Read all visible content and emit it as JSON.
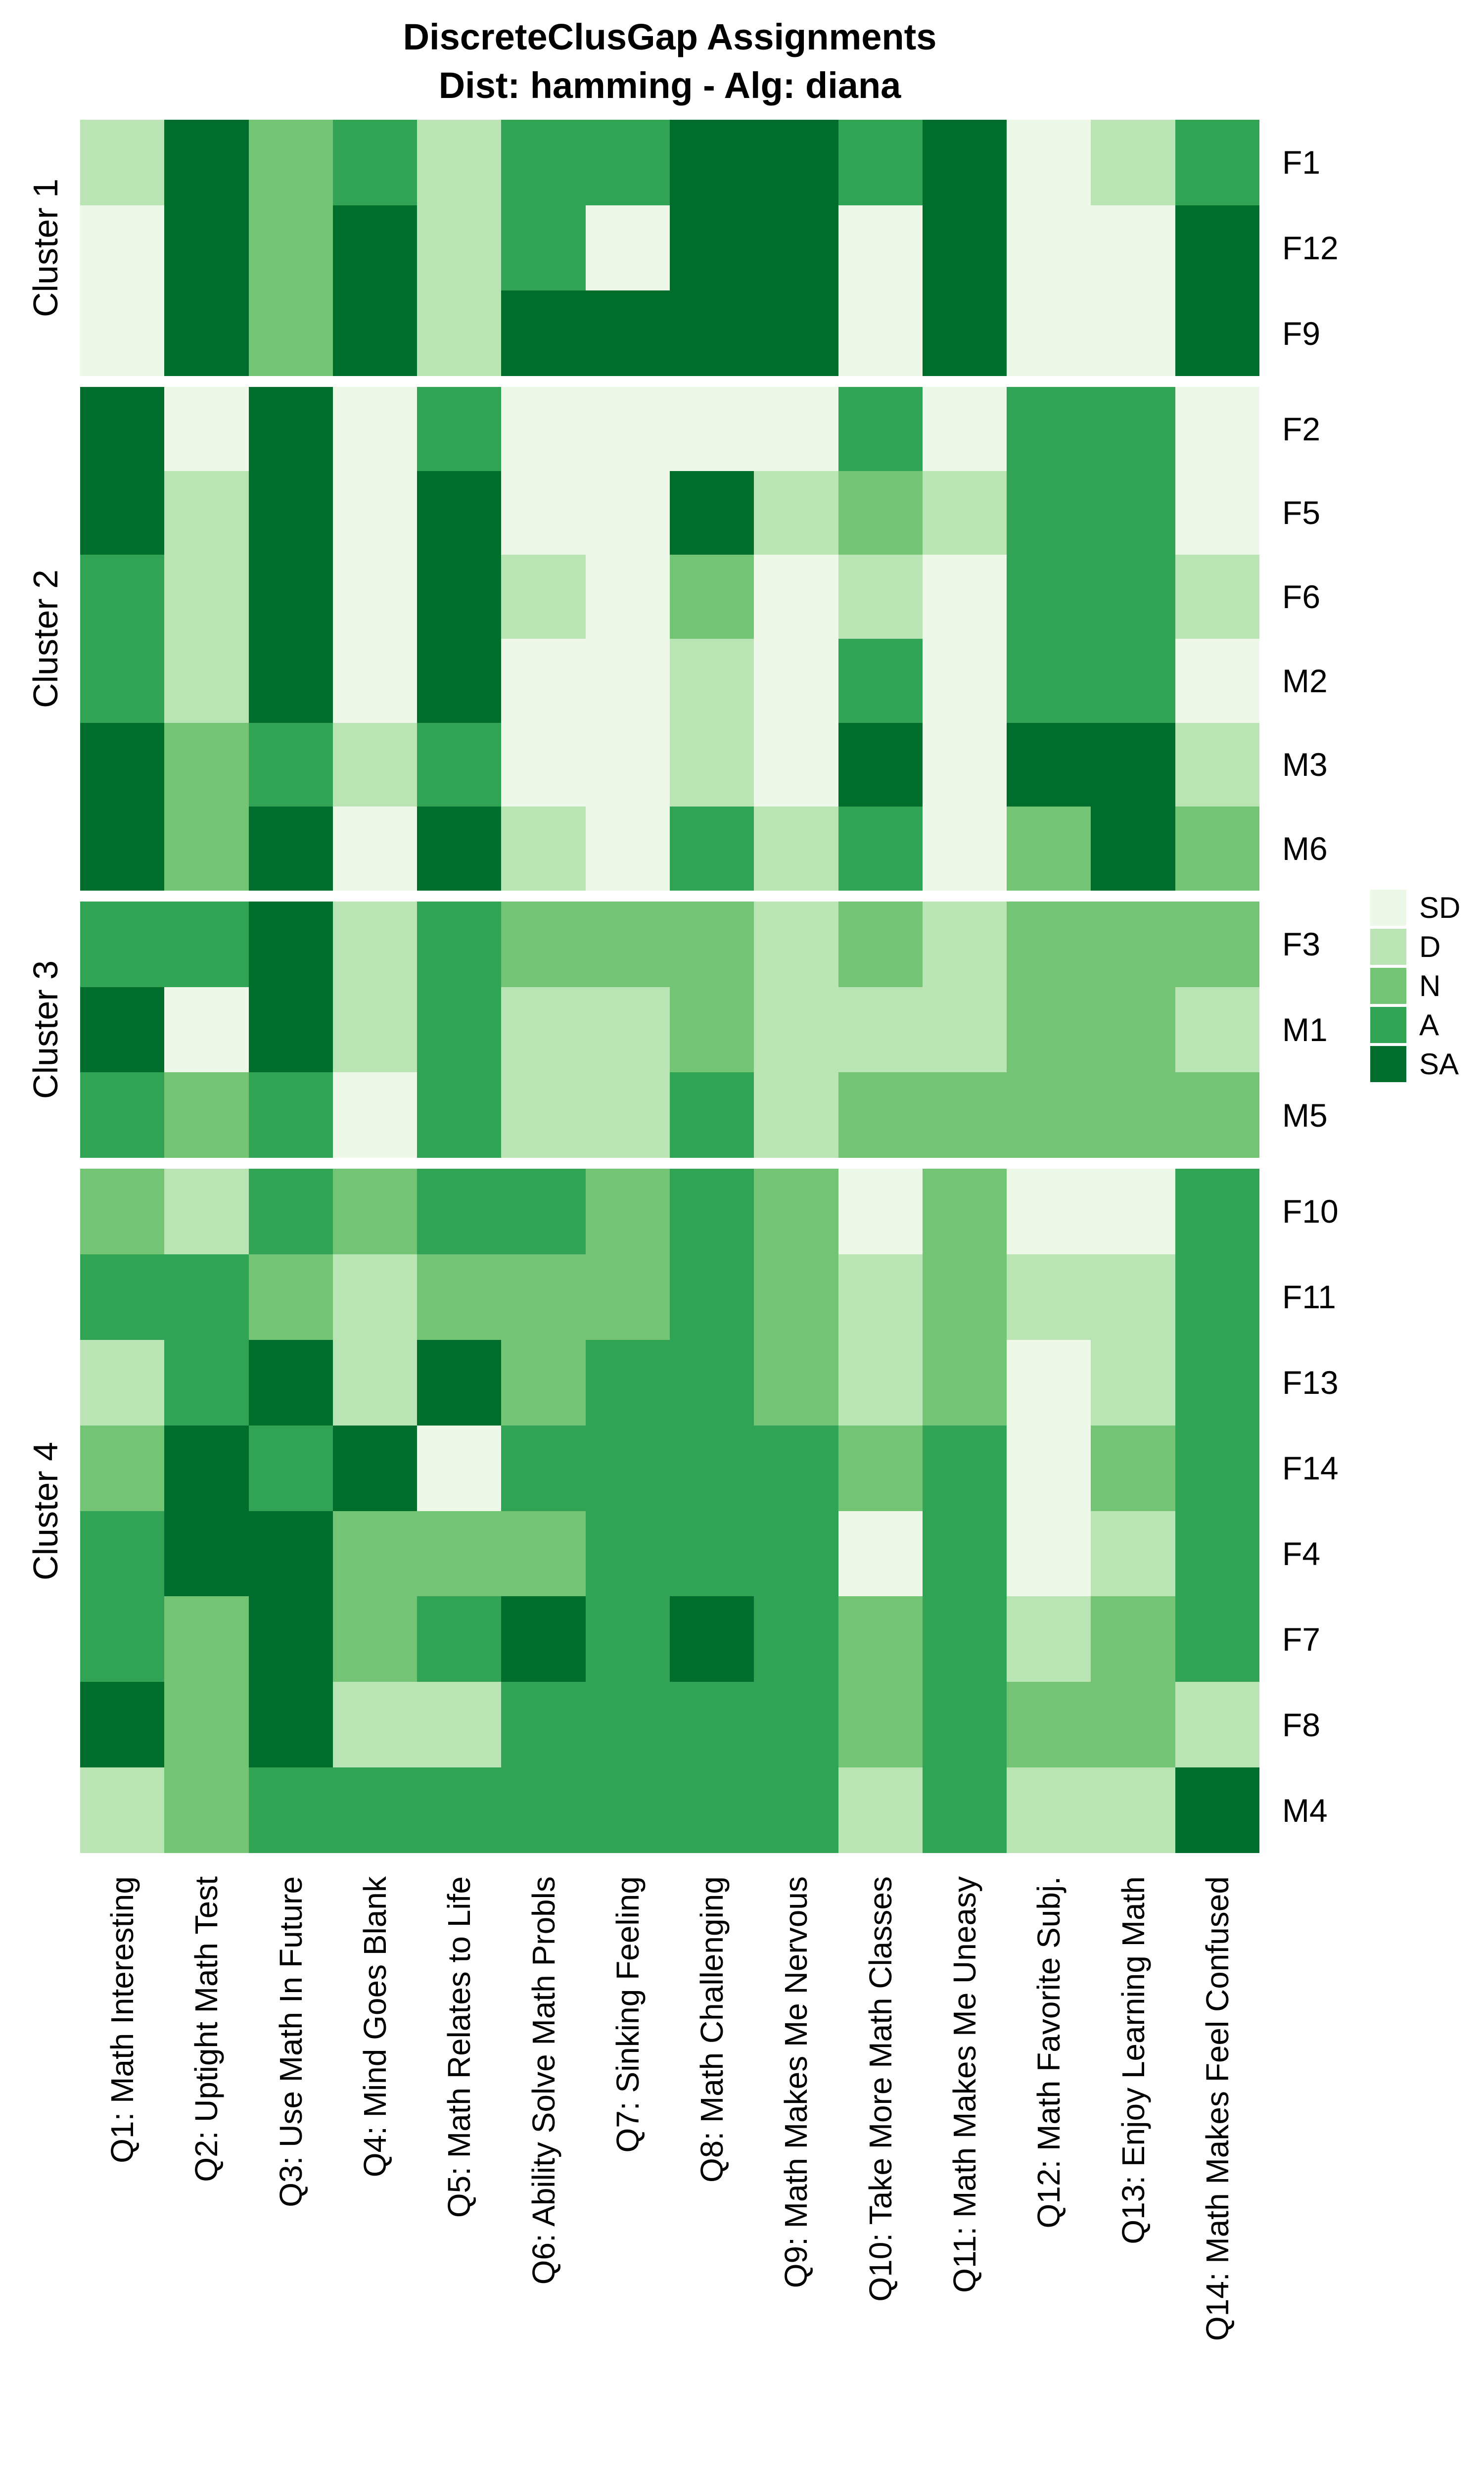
{
  "title": {
    "line1": "DiscreteClusGap Assignments",
    "line2": "Dist: hamming - Alg: diana"
  },
  "legend": {
    "entries": [
      {
        "label": "SD",
        "color": "#EDF8E9"
      },
      {
        "label": "D",
        "color": "#BAE4B3"
      },
      {
        "label": "N",
        "color": "#74C476"
      },
      {
        "label": "A",
        "color": "#31A354"
      },
      {
        "label": "SA",
        "color": "#006D2C"
      }
    ]
  },
  "chart_data": {
    "type": "heatmap",
    "value_levels": [
      "SD",
      "D",
      "N",
      "A",
      "SA"
    ],
    "x_labels": [
      "Q1: Math Interesting",
      "Q2: Uptight Math Test",
      "Q3: Use Math In Future",
      "Q4: Mind Goes Blank",
      "Q5: Math Relates to Life",
      "Q6: Ability Solve Math Probls",
      "Q7: Sinking Feeling",
      "Q8: Math Challenging",
      "Q9: Math Makes Me Nervous",
      "Q10: Take More Math Classes",
      "Q11: Math Makes Me Uneasy",
      "Q12: Math Favorite Subj.",
      "Q13: Enjoy Learning Math",
      "Q14: Math Makes Feel Confused"
    ],
    "clusters": [
      {
        "name": "Cluster 1",
        "rows": [
          {
            "id": "F1",
            "values": [
              "D",
              "SA",
              "N",
              "A",
              "D",
              "A",
              "A",
              "SA",
              "SA",
              "A",
              "SA",
              "SD",
              "D",
              "A"
            ]
          },
          {
            "id": "F12",
            "values": [
              "SD",
              "SA",
              "N",
              "SA",
              "D",
              "A",
              "SD",
              "SA",
              "SA",
              "SD",
              "SA",
              "SD",
              "SD",
              "SA"
            ]
          },
          {
            "id": "F9",
            "values": [
              "SD",
              "SA",
              "N",
              "SA",
              "D",
              "SA",
              "SA",
              "SA",
              "SA",
              "SD",
              "SA",
              "SD",
              "SD",
              "SA"
            ]
          }
        ]
      },
      {
        "name": "Cluster 2",
        "rows": [
          {
            "id": "F2",
            "values": [
              "SA",
              "SD",
              "SA",
              "SD",
              "A",
              "SD",
              "SD",
              "SD",
              "SD",
              "A",
              "SD",
              "A",
              "A",
              "SD"
            ]
          },
          {
            "id": "F5",
            "values": [
              "SA",
              "D",
              "SA",
              "SD",
              "SA",
              "SD",
              "SD",
              "SA",
              "D",
              "N",
              "D",
              "A",
              "A",
              "SD"
            ]
          },
          {
            "id": "F6",
            "values": [
              "A",
              "D",
              "SA",
              "SD",
              "SA",
              "D",
              "SD",
              "N",
              "SD",
              "D",
              "SD",
              "A",
              "A",
              "D"
            ]
          },
          {
            "id": "M2",
            "values": [
              "A",
              "D",
              "SA",
              "SD",
              "SA",
              "SD",
              "SD",
              "D",
              "SD",
              "A",
              "SD",
              "A",
              "A",
              "SD"
            ]
          },
          {
            "id": "M3",
            "values": [
              "SA",
              "N",
              "A",
              "D",
              "A",
              "SD",
              "SD",
              "D",
              "SD",
              "SA",
              "SD",
              "SA",
              "SA",
              "D"
            ]
          },
          {
            "id": "M6",
            "values": [
              "SA",
              "N",
              "SA",
              "SD",
              "SA",
              "D",
              "SD",
              "A",
              "D",
              "A",
              "SD",
              "N",
              "SA",
              "N"
            ]
          }
        ]
      },
      {
        "name": "Cluster 3",
        "rows": [
          {
            "id": "F3",
            "values": [
              "A",
              "A",
              "SA",
              "D",
              "A",
              "N",
              "N",
              "N",
              "D",
              "N",
              "D",
              "N",
              "N",
              "N"
            ]
          },
          {
            "id": "M1",
            "values": [
              "SA",
              "SD",
              "SA",
              "D",
              "A",
              "D",
              "D",
              "N",
              "D",
              "D",
              "D",
              "N",
              "N",
              "D"
            ]
          },
          {
            "id": "M5",
            "values": [
              "A",
              "N",
              "A",
              "SD",
              "A",
              "D",
              "D",
              "A",
              "D",
              "N",
              "N",
              "N",
              "N",
              "N"
            ]
          }
        ]
      },
      {
        "name": "Cluster 4",
        "rows": [
          {
            "id": "F10",
            "values": [
              "N",
              "D",
              "A",
              "N",
              "A",
              "A",
              "N",
              "A",
              "N",
              "SD",
              "N",
              "SD",
              "SD",
              "A"
            ]
          },
          {
            "id": "F11",
            "values": [
              "A",
              "A",
              "N",
              "D",
              "N",
              "N",
              "N",
              "A",
              "N",
              "D",
              "N",
              "D",
              "D",
              "A"
            ]
          },
          {
            "id": "F13",
            "values": [
              "D",
              "A",
              "SA",
              "D",
              "SA",
              "N",
              "A",
              "A",
              "N",
              "D",
              "N",
              "SD",
              "D",
              "A"
            ]
          },
          {
            "id": "F14",
            "values": [
              "N",
              "SA",
              "A",
              "SA",
              "SD",
              "A",
              "A",
              "A",
              "A",
              "N",
              "A",
              "SD",
              "N",
              "A"
            ]
          },
          {
            "id": "F4",
            "values": [
              "A",
              "SA",
              "SA",
              "N",
              "N",
              "N",
              "A",
              "A",
              "A",
              "SD",
              "A",
              "SD",
              "D",
              "A"
            ]
          },
          {
            "id": "F7",
            "values": [
              "A",
              "N",
              "SA",
              "N",
              "A",
              "SA",
              "A",
              "SA",
              "A",
              "N",
              "A",
              "D",
              "N",
              "A"
            ]
          },
          {
            "id": "F8",
            "values": [
              "SA",
              "N",
              "SA",
              "D",
              "D",
              "A",
              "A",
              "A",
              "A",
              "N",
              "A",
              "N",
              "N",
              "D"
            ]
          },
          {
            "id": "M4",
            "values": [
              "D",
              "N",
              "A",
              "A",
              "A",
              "A",
              "A",
              "A",
              "A",
              "D",
              "A",
              "D",
              "D",
              "SA"
            ]
          }
        ]
      }
    ]
  }
}
